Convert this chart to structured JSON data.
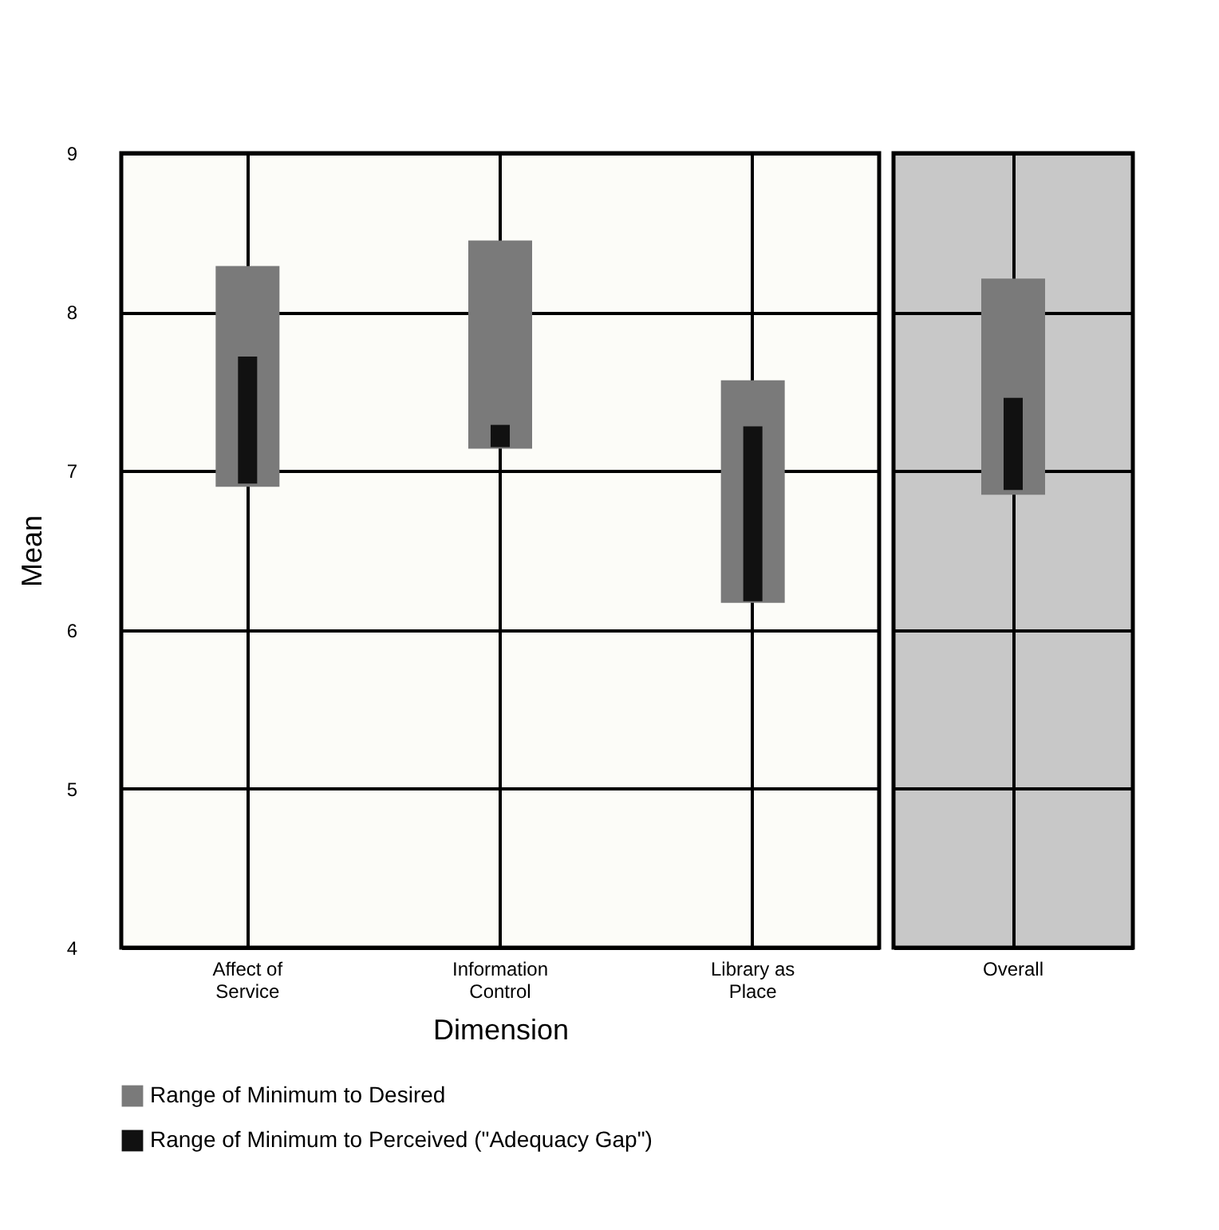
{
  "chart_data": [
    {
      "type": "bar",
      "xlabel": "Dimension",
      "ylabel": "Mean",
      "categories": [
        "Affect of Service",
        "Information Control",
        "Library as Place"
      ],
      "ylim": [
        4,
        9
      ],
      "yticks": [
        4,
        5,
        6,
        7,
        8,
        9
      ],
      "grid": true,
      "legend": "bottom",
      "series": [
        {
          "name": "Range of Minimum to Desired",
          "color": "#7a7a7a",
          "base": [
            6.9,
            7.14,
            6.17
          ],
          "values": [
            1.39,
            1.31,
            1.4
          ]
        },
        {
          "name": "Range of Minimum to Perceived (\"Adequacy Gap\")",
          "color": "#111111",
          "base": [
            6.92,
            7.15,
            6.18
          ],
          "values": [
            0.8,
            0.14,
            1.1
          ]
        }
      ]
    },
    {
      "type": "bar",
      "categories": [
        "Overall"
      ],
      "ylim": [
        4,
        9
      ],
      "yticks": [
        4,
        5,
        6,
        7,
        8,
        9
      ],
      "grid": true,
      "tick_labels": "x",
      "series": [
        {
          "color": "#7a7a7a",
          "base": [
            6.85
          ],
          "values": [
            1.36
          ]
        },
        {
          "color": "#111111",
          "base": [
            6.88
          ],
          "values": [
            0.58
          ]
        }
      ]
    }
  ]
}
